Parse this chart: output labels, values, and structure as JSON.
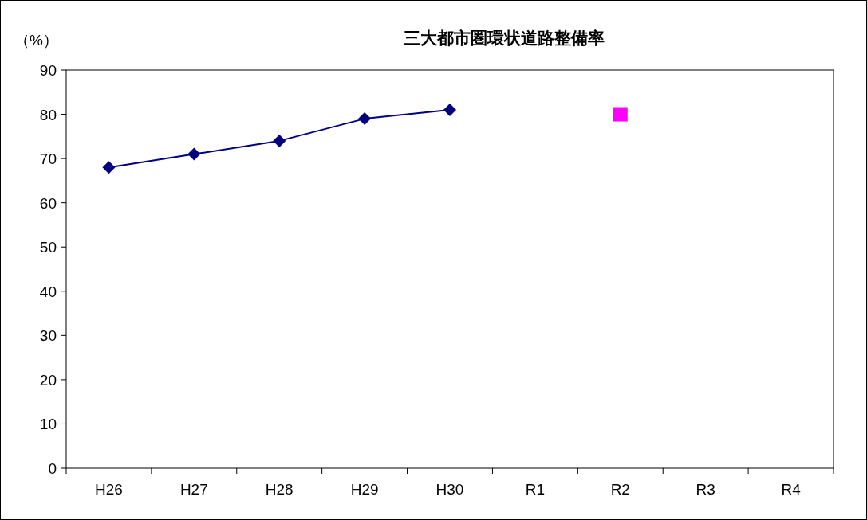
{
  "chart_data": {
    "type": "line",
    "title": "三大都市圏環状道路整備率",
    "ylabel": "（%）",
    "categories": [
      "H26",
      "H27",
      "H28",
      "H29",
      "H30",
      "R1",
      "R2",
      "R3",
      "R4"
    ],
    "series": [
      {
        "color": "#000080",
        "marker": "diamond",
        "values": [
          68,
          71,
          74,
          79,
          81,
          null,
          null,
          null,
          null
        ]
      },
      {
        "type": "scatter",
        "color": "#ff00ff",
        "marker": "square",
        "values": [
          null,
          null,
          null,
          null,
          null,
          null,
          80,
          null,
          null
        ]
      }
    ],
    "ylim": [
      0,
      90
    ],
    "yticks": [
      0,
      10,
      20,
      30,
      40,
      50,
      60,
      70,
      80,
      90
    ],
    "grid": false
  }
}
